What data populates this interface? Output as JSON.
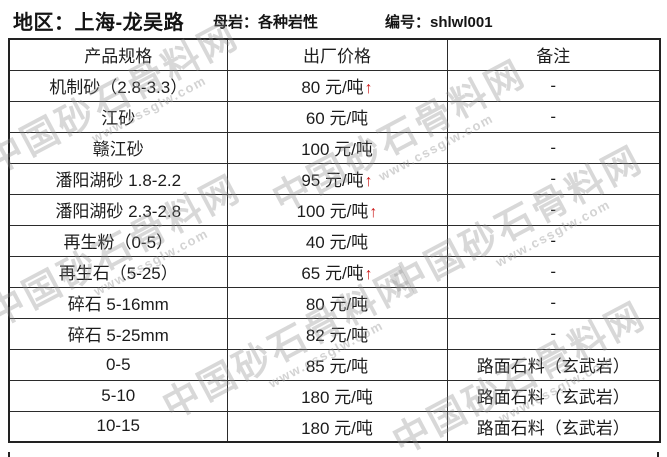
{
  "header": {
    "region": "地区：上海-龙吴路",
    "rock": "母岩：各种岩性",
    "code": "编号：shlwl001"
  },
  "table": {
    "columns": [
      "产品规格",
      "出厂价格",
      "备注"
    ],
    "rows": [
      {
        "spec": "机制砂（2.8-3.3）",
        "price": "80 元/吨",
        "trend": "up",
        "note": "-"
      },
      {
        "spec": "江砂",
        "price": "60 元/吨",
        "trend": "none",
        "note": "-"
      },
      {
        "spec": "赣江砂",
        "price": "100 元/吨",
        "trend": "none",
        "note": "-"
      },
      {
        "spec": "潘阳湖砂 1.8-2.2",
        "price": "95 元/吨",
        "trend": "up",
        "note": "-"
      },
      {
        "spec": "潘阳湖砂 2.3-2.8",
        "price": "100 元/吨",
        "trend": "up",
        "note": "-"
      },
      {
        "spec": "再生粉（0-5）",
        "price": "40 元/吨",
        "trend": "none",
        "note": "-"
      },
      {
        "spec": "再生石（5-25）",
        "price": "65 元/吨",
        "trend": "up",
        "note": "-"
      },
      {
        "spec": "碎石 5-16mm",
        "price": "80 元/吨",
        "trend": "none",
        "note": "-"
      },
      {
        "spec": "碎石 5-25mm",
        "price": "82 元/吨",
        "trend": "none",
        "note": "-"
      },
      {
        "spec": "0-5",
        "price": "85 元/吨",
        "trend": "none",
        "note": "路面石料（玄武岩）"
      },
      {
        "spec": "5-10",
        "price": "180 元/吨",
        "trend": "none",
        "note": "路面石料（玄武岩）"
      },
      {
        "spec": "10-15",
        "price": "180 元/吨",
        "trend": "none",
        "note": "路面石料（玄武岩）"
      }
    ]
  },
  "icons": {
    "trend_up": "↑"
  },
  "watermark": {
    "text": "中国砂石骨料网",
    "url": "www.cssglw.com"
  },
  "colors": {
    "trend_up_red": "#cc1c1c",
    "border": "#2b2b2b",
    "text": "#1c1c1c",
    "watermark_gray": "#8c8c8c",
    "background": "#ffffff"
  }
}
